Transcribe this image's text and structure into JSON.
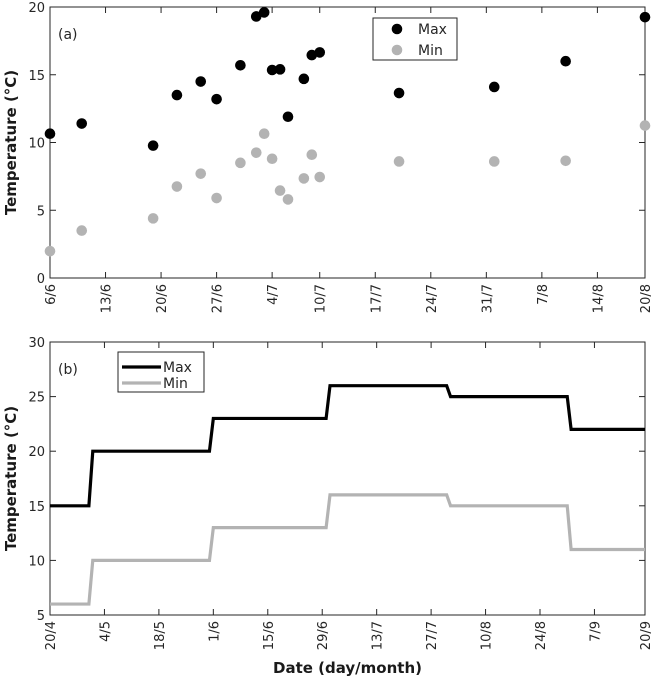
{
  "chart_data": [
    {
      "type": "scatter",
      "panel_label": "(a)",
      "ylabel": "Temperature (°C)",
      "xlabel": "",
      "xlim": [
        "6/6",
        "20/8"
      ],
      "ylim": [
        0,
        20
      ],
      "xticks": [
        "6/6",
        "13/6",
        "20/6",
        "27/6",
        "4/7",
        "10/7",
        "17/7",
        "24/7",
        "31/7",
        "7/8",
        "14/8",
        "20/8"
      ],
      "yticks": [
        0,
        5,
        10,
        15,
        20
      ],
      "grid": false,
      "legend_position": "top-center",
      "x": [
        "6/6",
        "10/6",
        "19/6",
        "22/6",
        "25/6",
        "27/6",
        "30/6",
        "2/7",
        "3/7",
        "4/7",
        "5/7",
        "6/7",
        "8/7",
        "9/7",
        "10/7",
        "20/7",
        "1/8",
        "10/8",
        "20/8"
      ],
      "series": [
        {
          "name": "Max",
          "color": "#000000",
          "values": [
            10.65,
            11.4,
            9.77,
            13.5,
            14.5,
            13.2,
            15.7,
            19.3,
            19.6,
            15.35,
            15.4,
            11.9,
            14.7,
            16.45,
            16.65,
            13.65,
            14.1,
            16.0,
            19.25
          ]
        },
        {
          "name": "Min",
          "color": "#b3b3b3",
          "values": [
            1.98,
            3.5,
            4.4,
            6.75,
            7.7,
            5.9,
            8.5,
            9.25,
            10.65,
            8.8,
            6.45,
            5.8,
            7.35,
            9.1,
            7.45,
            8.6,
            8.6,
            8.65,
            11.25
          ]
        }
      ]
    },
    {
      "type": "line",
      "panel_label": "(b)",
      "ylabel": "Temperature (°C)",
      "xlabel": "Date (day/month)",
      "xlim": [
        "20/4",
        "20/9"
      ],
      "ylim": [
        5,
        30
      ],
      "xticks": [
        "20/4",
        "4/5",
        "18/5",
        "1/6",
        "15/6",
        "29/6",
        "13/7",
        "27/7",
        "10/8",
        "24/8",
        "7/9",
        "20/9"
      ],
      "yticks": [
        5,
        10,
        15,
        20,
        25,
        30
      ],
      "grid": false,
      "legend_position": "top-left",
      "x": [
        "20/4",
        "30/4",
        "1/5",
        "31/5",
        "1/6",
        "30/6",
        "1/7",
        "31/7",
        "1/8",
        "31/8",
        "1/9",
        "20/9"
      ],
      "series": [
        {
          "name": "Max",
          "color": "#000000",
          "values": [
            15,
            15,
            20,
            20,
            23,
            23,
            26,
            26,
            25,
            25,
            22,
            22
          ]
        },
        {
          "name": "Min",
          "color": "#b3b3b3",
          "values": [
            6,
            6,
            10,
            10,
            13,
            13,
            16,
            16,
            15,
            15,
            11,
            11
          ]
        }
      ]
    }
  ]
}
